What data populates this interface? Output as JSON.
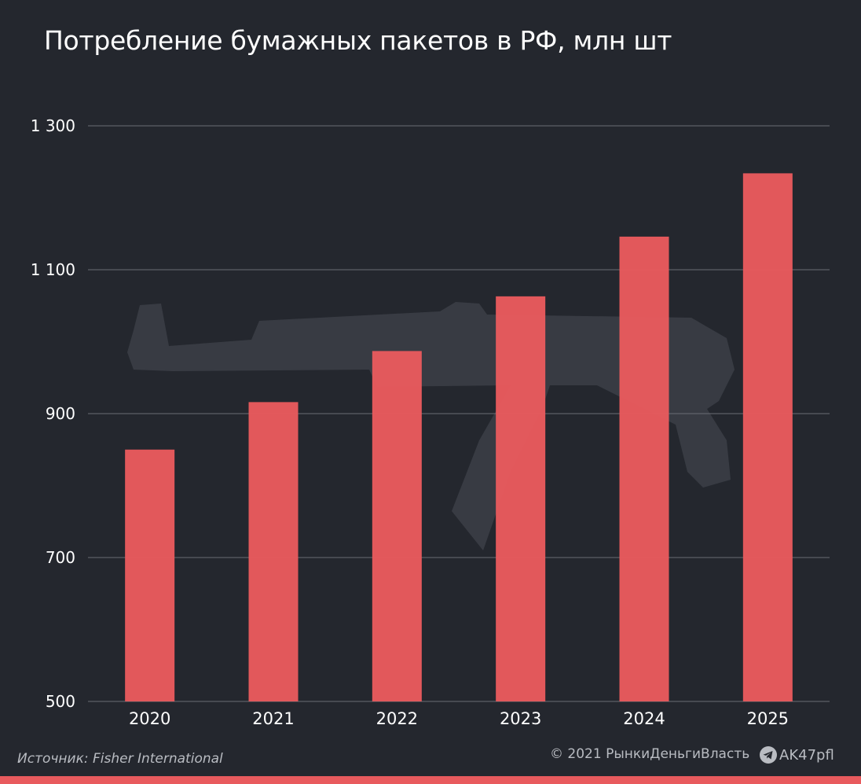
{
  "title": "Потребление бумажных пакетов в РФ, млн шт",
  "footer": {
    "source": "Источник: Fisher International",
    "copyright": "© 2021  РынкиДеньгиВласть",
    "channel": "AK47pfl",
    "channel_icon": "telegram-icon"
  },
  "colors": {
    "background": "#24272e",
    "bar": "#e85a5d",
    "grid": "#6a6d74",
    "watermark": "#3b3e46"
  },
  "chart_data": {
    "type": "bar",
    "categories": [
      "2020",
      "2021",
      "2022",
      "2023",
      "2024",
      "2025"
    ],
    "values": [
      850,
      916,
      987,
      1063,
      1146,
      1234
    ],
    "title": "Потребление бумажных пакетов в РФ, млн шт",
    "xlabel": "",
    "ylabel": "",
    "ylim": [
      500,
      1300
    ],
    "yticks": [
      500,
      700,
      900,
      1100,
      1300
    ],
    "ytick_labels": [
      "500",
      "700",
      "900",
      "1 100",
      "1 300"
    ],
    "grid": true,
    "legend": "none"
  }
}
